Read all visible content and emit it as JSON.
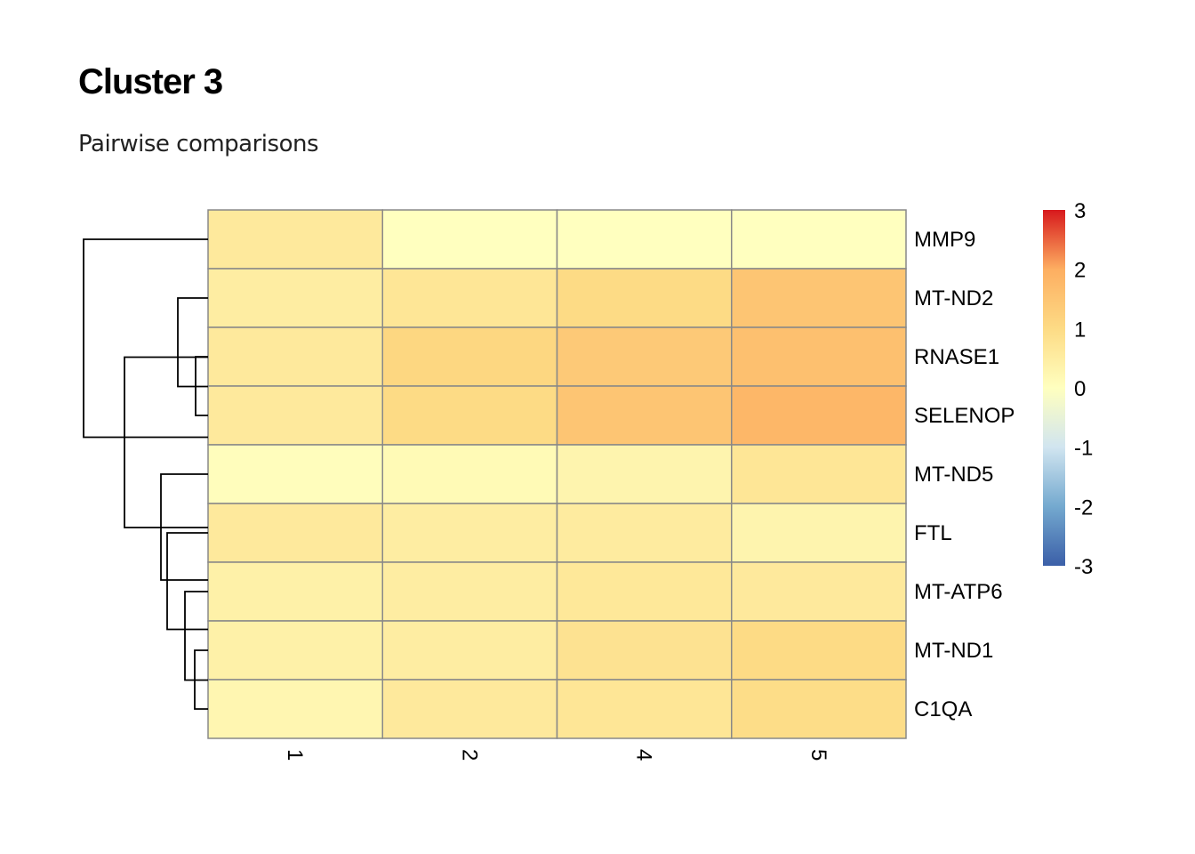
{
  "chart_data": {
    "type": "heatmap",
    "title": "Cluster 3",
    "subtitle": "Pairwise comparisons",
    "columns": [
      "1",
      "2",
      "4",
      "5"
    ],
    "rows": [
      "MMP9",
      "MT-ND2",
      "RNASE1",
      "SELENOP",
      "MT-ND5",
      "FTL",
      "MT-ATP6",
      "MT-ND1",
      "C1QA"
    ],
    "values": [
      [
        0.6,
        0.0,
        0.0,
        0.0
      ],
      [
        0.5,
        0.7,
        1.0,
        1.5
      ],
      [
        0.6,
        1.1,
        1.4,
        1.6
      ],
      [
        0.6,
        1.0,
        1.5,
        1.8
      ],
      [
        0.05,
        0.15,
        0.3,
        0.7
      ],
      [
        0.6,
        0.5,
        0.55,
        0.3
      ],
      [
        0.4,
        0.5,
        0.65,
        0.6
      ],
      [
        0.4,
        0.5,
        0.8,
        1.0
      ],
      [
        0.25,
        0.6,
        0.7,
        0.95
      ]
    ],
    "color_scale": {
      "min": -3,
      "max": 3,
      "ticks": [
        "3",
        "2",
        "1",
        "0",
        "-1",
        "-2",
        "-3"
      ],
      "colors": [
        "#3B5FA8",
        "#74A9CF",
        "#D1E5F0",
        "#FFFFBF",
        "#FDDB85",
        "#FDAE61",
        "#D7191C"
      ]
    },
    "row_dendrogram": true,
    "grid_color": "#888888"
  }
}
